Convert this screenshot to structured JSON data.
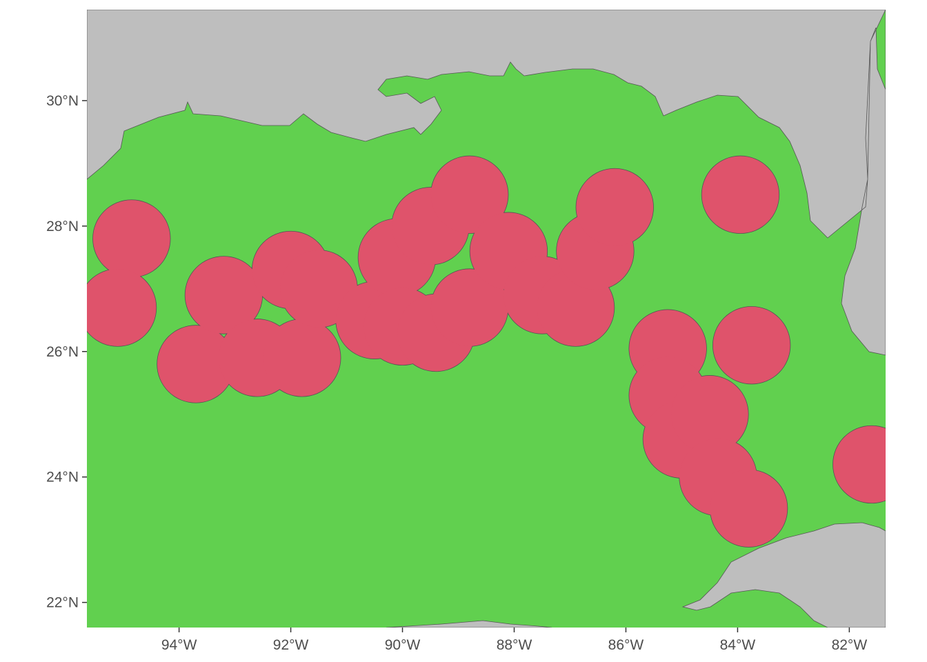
{
  "map": {
    "lon_range": [
      -95.65,
      -81.35
    ],
    "lat_range": [
      21.6,
      31.45
    ],
    "colors": {
      "land": "#bebebe",
      "water": "#61d04f",
      "zone": "#df536b",
      "outline": "#555555"
    },
    "x_ticks": [
      {
        "lon": -94,
        "label": "94°W"
      },
      {
        "lon": -92,
        "label": "92°W"
      },
      {
        "lon": -90,
        "label": "90°W"
      },
      {
        "lon": -88,
        "label": "88°W"
      },
      {
        "lon": -86,
        "label": "86°W"
      },
      {
        "lon": -84,
        "label": "84°W"
      },
      {
        "lon": -82,
        "label": "82°W"
      }
    ],
    "y_ticks": [
      {
        "lat": 22,
        "label": "22°N"
      },
      {
        "lat": 24,
        "label": "24°N"
      },
      {
        "lat": 26,
        "label": "26°N"
      },
      {
        "lat": 28,
        "label": "28°N"
      },
      {
        "lat": 30,
        "label": "30°N"
      }
    ],
    "zones": [
      {
        "lon": -94.85,
        "lat": 27.8
      },
      {
        "lon": -95.1,
        "lat": 26.7
      },
      {
        "lon": -93.7,
        "lat": 25.8
      },
      {
        "lon": -93.2,
        "lat": 26.9
      },
      {
        "lon": -92.6,
        "lat": 25.9
      },
      {
        "lon": -92.0,
        "lat": 27.3
      },
      {
        "lon": -91.8,
        "lat": 25.9
      },
      {
        "lon": -91.5,
        "lat": 27.0
      },
      {
        "lon": -90.5,
        "lat": 26.5
      },
      {
        "lon": -90.1,
        "lat": 27.5
      },
      {
        "lon": -90.0,
        "lat": 26.4
      },
      {
        "lon": -89.4,
        "lat": 26.3
      },
      {
        "lon": -89.5,
        "lat": 28.0
      },
      {
        "lon": -88.8,
        "lat": 28.5
      },
      {
        "lon": -88.8,
        "lat": 26.7
      },
      {
        "lon": -88.1,
        "lat": 27.6
      },
      {
        "lon": -87.5,
        "lat": 26.9
      },
      {
        "lon": -86.9,
        "lat": 26.7
      },
      {
        "lon": -86.55,
        "lat": 27.6
      },
      {
        "lon": -86.2,
        "lat": 28.3
      },
      {
        "lon": -83.95,
        "lat": 28.5
      },
      {
        "lon": -85.25,
        "lat": 26.05
      },
      {
        "lon": -85.25,
        "lat": 25.3
      },
      {
        "lon": -85.0,
        "lat": 24.6
      },
      {
        "lon": -84.5,
        "lat": 25.0
      },
      {
        "lon": -84.35,
        "lat": 24.0
      },
      {
        "lon": -83.75,
        "lat": 26.1
      },
      {
        "lon": -83.8,
        "lat": 23.5
      },
      {
        "lon": -81.6,
        "lat": 24.2
      }
    ],
    "zone_radius_deg": 0.75
  }
}
